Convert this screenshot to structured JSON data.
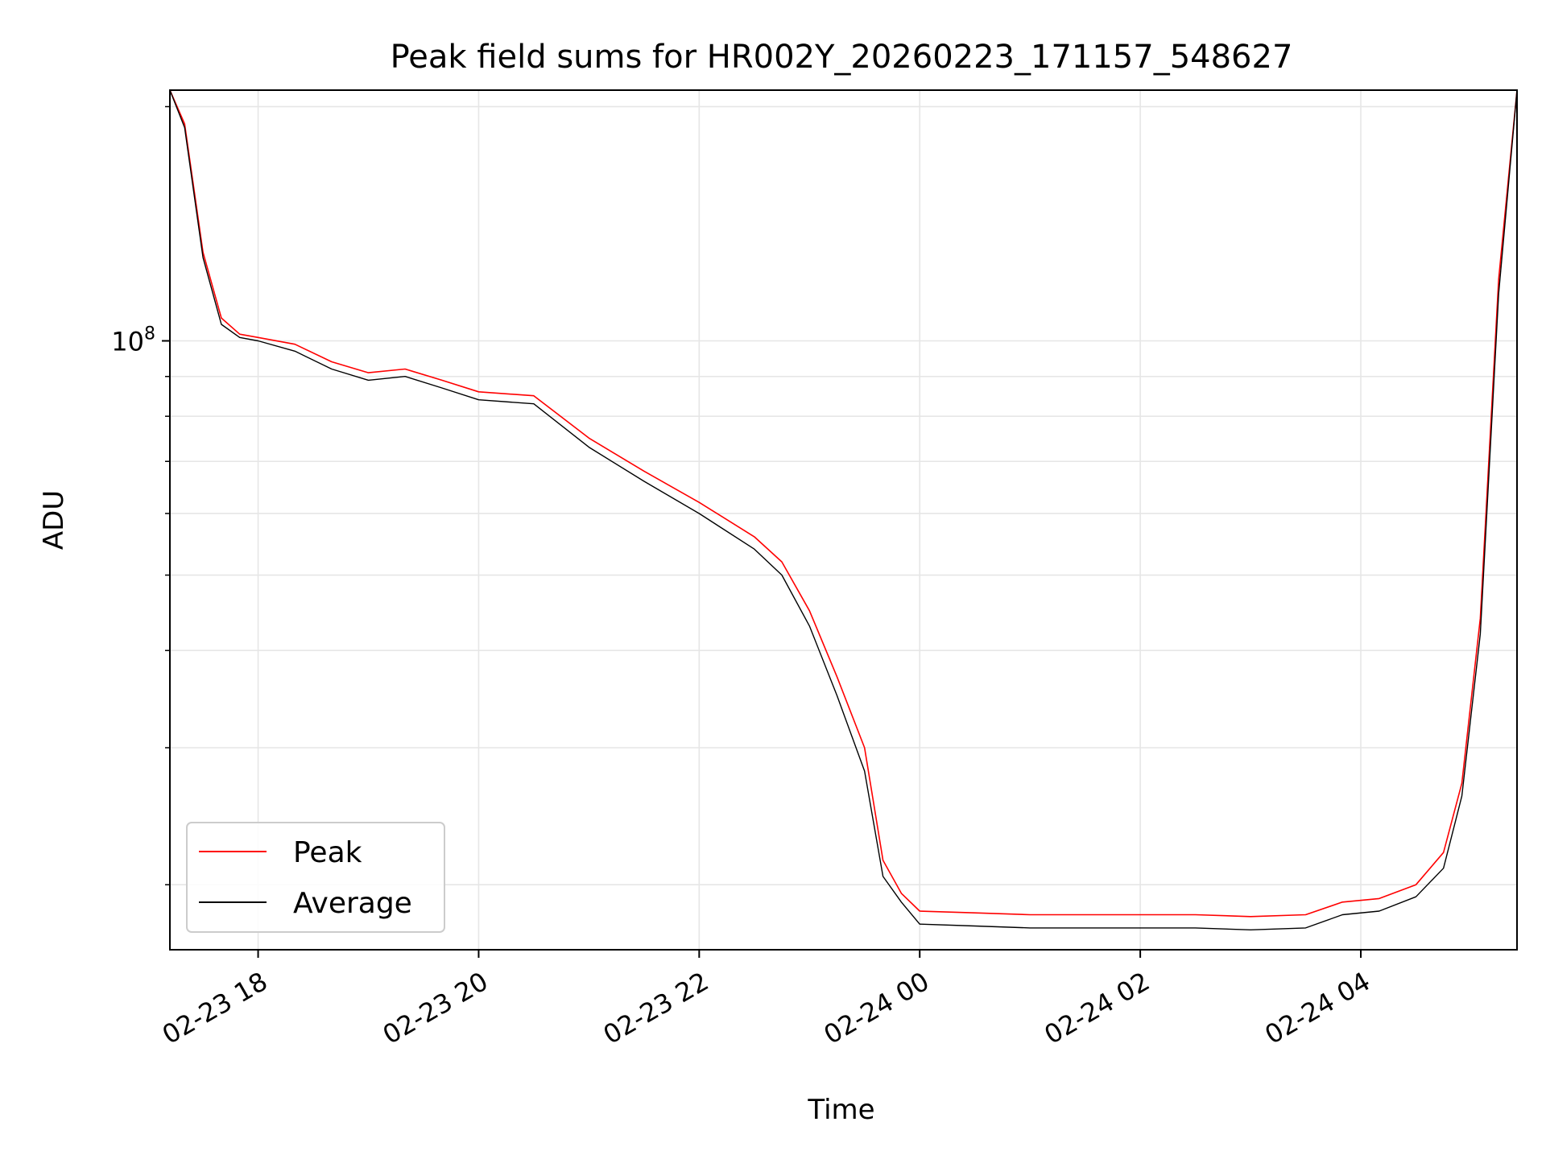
{
  "chart_data": {
    "type": "line",
    "title": "Peak field sums for HR002Y_20260223_171157_548627",
    "xlabel": "Time",
    "ylabel": "ADU",
    "yscale": "log",
    "grid": true,
    "legend_position": "lower-left",
    "xlim": [
      "2026-02-23 17:12",
      "2026-02-24 05:25"
    ],
    "ylim": [
      16500000,
      210000000
    ],
    "x_ticks": [
      "02-23 18",
      "02-23 20",
      "02-23 22",
      "02-24 00",
      "02-24 02",
      "02-24 04"
    ],
    "y_tick_label": {
      "base": "10",
      "exp": "8"
    },
    "colors": {
      "peak": "#ff0000",
      "average": "#000000"
    },
    "series": [
      {
        "name": "Peak",
        "color": "#ff0000",
        "x": [
          "2026-02-23 17:12",
          "2026-02-23 17:20",
          "2026-02-23 17:30",
          "2026-02-23 17:40",
          "2026-02-23 17:50",
          "2026-02-23 18:00",
          "2026-02-23 18:20",
          "2026-02-23 18:40",
          "2026-02-23 19:00",
          "2026-02-23 19:20",
          "2026-02-23 19:40",
          "2026-02-23 20:00",
          "2026-02-23 20:30",
          "2026-02-23 21:00",
          "2026-02-23 21:30",
          "2026-02-23 22:00",
          "2026-02-23 22:30",
          "2026-02-23 22:45",
          "2026-02-23 23:00",
          "2026-02-23 23:15",
          "2026-02-23 23:30",
          "2026-02-23 23:40",
          "2026-02-23 23:50",
          "2026-02-24 00:00",
          "2026-02-24 00:30",
          "2026-02-24 01:00",
          "2026-02-24 01:30",
          "2026-02-24 02:00",
          "2026-02-24 02:30",
          "2026-02-24 03:00",
          "2026-02-24 03:30",
          "2026-02-24 03:50",
          "2026-02-24 04:10",
          "2026-02-24 04:30",
          "2026-02-24 04:45",
          "2026-02-24 04:55",
          "2026-02-24 05:05",
          "2026-02-24 05:15",
          "2026-02-24 05:25"
        ],
        "y": [
          210000000,
          190000000,
          130000000,
          107000000,
          102000000,
          101000000,
          99000000,
          94000000,
          91000000,
          92000000,
          89000000,
          86000000,
          85000000,
          75000000,
          68000000,
          62000000,
          56000000,
          52000000,
          45000000,
          37000000,
          30000000,
          21500000,
          19500000,
          18500000,
          18400000,
          18300000,
          18300000,
          18300000,
          18300000,
          18200000,
          18300000,
          19000000,
          19200000,
          20000000,
          22000000,
          27000000,
          44000000,
          120000000,
          210000000
        ]
      },
      {
        "name": "Average",
        "color": "#000000",
        "x": [
          "2026-02-23 17:12",
          "2026-02-23 17:20",
          "2026-02-23 17:30",
          "2026-02-23 17:40",
          "2026-02-23 17:50",
          "2026-02-23 18:00",
          "2026-02-23 18:20",
          "2026-02-23 18:40",
          "2026-02-23 19:00",
          "2026-02-23 19:20",
          "2026-02-23 19:40",
          "2026-02-23 20:00",
          "2026-02-23 20:30",
          "2026-02-23 21:00",
          "2026-02-23 21:30",
          "2026-02-23 22:00",
          "2026-02-23 22:30",
          "2026-02-23 22:45",
          "2026-02-23 23:00",
          "2026-02-23 23:15",
          "2026-02-23 23:30",
          "2026-02-23 23:40",
          "2026-02-23 23:50",
          "2026-02-24 00:00",
          "2026-02-24 00:30",
          "2026-02-24 01:00",
          "2026-02-24 01:30",
          "2026-02-24 02:00",
          "2026-02-24 02:30",
          "2026-02-24 03:00",
          "2026-02-24 03:30",
          "2026-02-24 03:50",
          "2026-02-24 04:10",
          "2026-02-24 04:30",
          "2026-02-24 04:45",
          "2026-02-24 04:55",
          "2026-02-24 05:05",
          "2026-02-24 05:15",
          "2026-02-24 05:25"
        ],
        "y": [
          210000000,
          188000000,
          128000000,
          105000000,
          101000000,
          100000000,
          97000000,
          92000000,
          89000000,
          90000000,
          87000000,
          84000000,
          83000000,
          73000000,
          66000000,
          60000000,
          54000000,
          50000000,
          43000000,
          35000000,
          28000000,
          20500000,
          19000000,
          17800000,
          17700000,
          17600000,
          17600000,
          17600000,
          17600000,
          17500000,
          17600000,
          18300000,
          18500000,
          19300000,
          21000000,
          26000000,
          42000000,
          115000000,
          210000000
        ]
      }
    ]
  }
}
